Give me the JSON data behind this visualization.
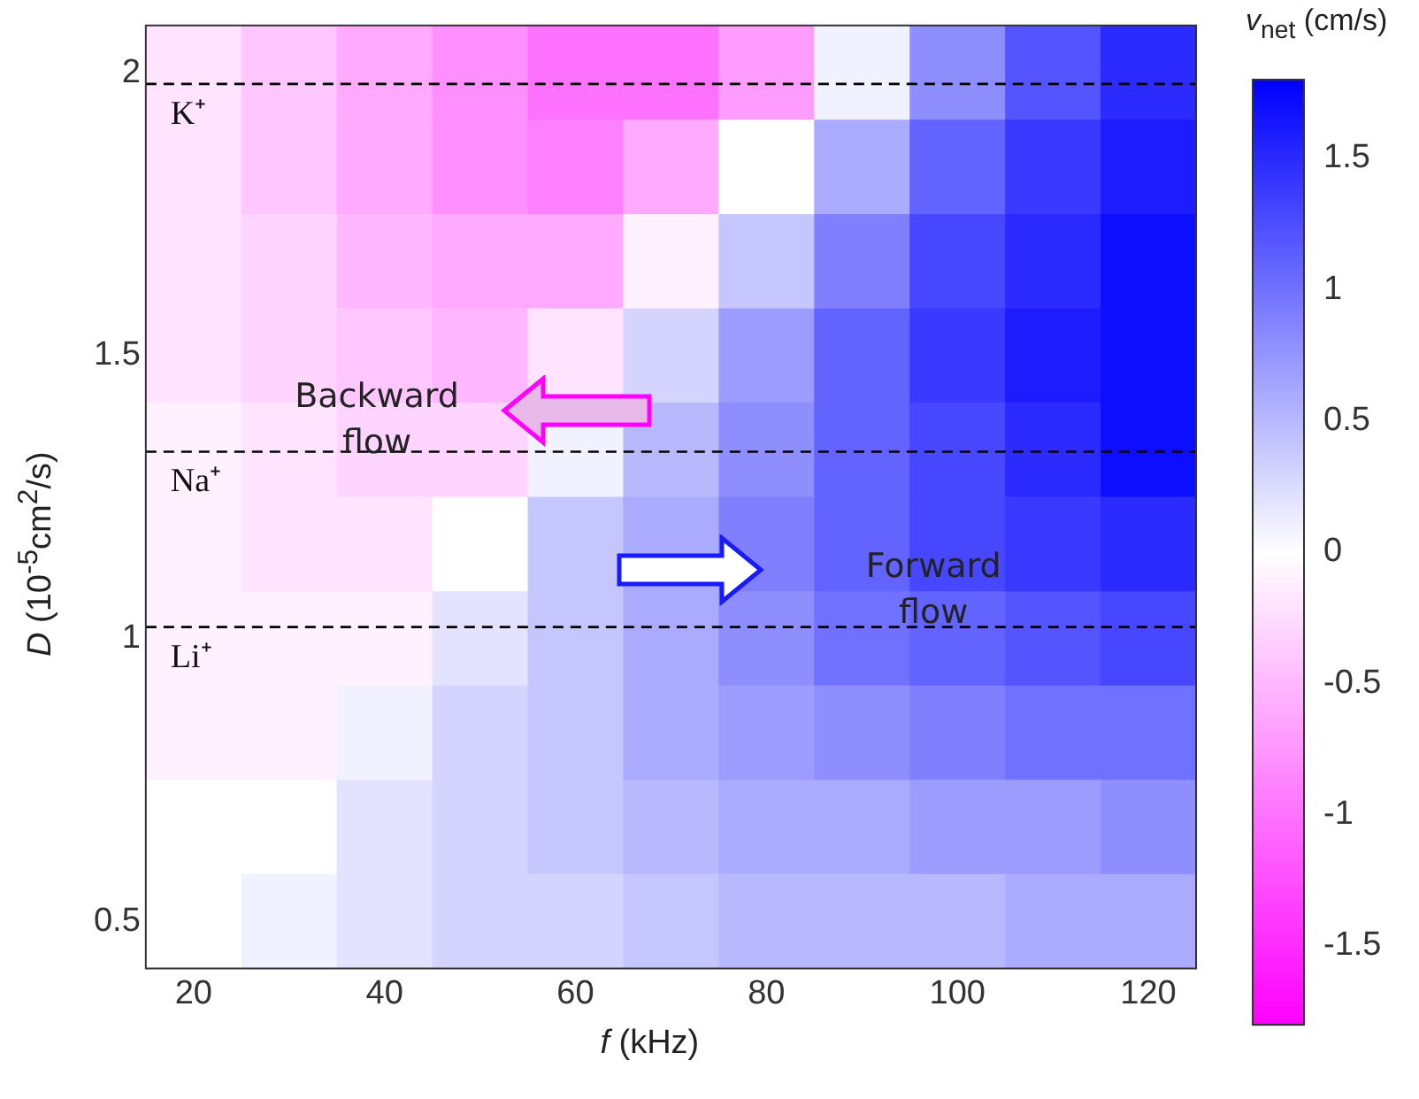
{
  "chart_data": {
    "type": "heatmap",
    "xlabel": "f (kHz)",
    "ylabel": "D (10$^{-5}$cm$^{2}$/s)",
    "clabel": "v$_{net}$ (cm/s)",
    "categories": [
      "20",
      null,
      "40",
      null,
      "60",
      null,
      "80",
      null,
      "100",
      null,
      "120"
    ],
    "y_categories": [
      "2",
      null,
      null,
      "1.5",
      null,
      null,
      "1",
      null,
      null,
      "0.5"
    ],
    "cells": [
      [
        -0.2,
        -0.4,
        -0.6,
        -0.8,
        -1.0,
        -1.0,
        -0.7,
        0.1,
        0.8,
        1.2,
        1.5
      ],
      [
        -0.2,
        -0.4,
        -0.6,
        -0.8,
        -0.9,
        -0.6,
        0.0,
        0.6,
        1.1,
        1.4,
        1.6
      ],
      [
        -0.2,
        -0.3,
        -0.5,
        -0.6,
        -0.6,
        -0.1,
        0.4,
        0.9,
        1.3,
        1.5,
        1.7
      ],
      [
        -0.2,
        -0.3,
        -0.4,
        -0.5,
        -0.2,
        0.3,
        0.7,
        1.1,
        1.4,
        1.6,
        1.7
      ],
      [
        -0.1,
        -0.2,
        -0.3,
        -0.3,
        0.1,
        0.5,
        0.8,
        1.1,
        1.3,
        1.5,
        1.7
      ],
      [
        -0.1,
        -0.2,
        -0.2,
        0.0,
        0.4,
        0.6,
        0.9,
        1.1,
        1.3,
        1.4,
        1.5
      ],
      [
        -0.1,
        -0.1,
        -0.1,
        0.2,
        0.4,
        0.6,
        0.8,
        1.0,
        1.1,
        1.2,
        1.3
      ],
      [
        -0.1,
        -0.1,
        0.1,
        0.3,
        0.4,
        0.6,
        0.7,
        0.8,
        0.9,
        1.0,
        1.0
      ],
      [
        0.0,
        0.0,
        0.2,
        0.3,
        0.4,
        0.5,
        0.6,
        0.6,
        0.7,
        0.7,
        0.8
      ],
      [
        0.0,
        0.1,
        0.2,
        0.3,
        0.3,
        0.4,
        0.5,
        0.5,
        0.5,
        0.6,
        0.6
      ]
    ],
    "clim": [
      -1.8,
      1.8
    ],
    "cticks": [
      -1.5,
      -1,
      -0.5,
      0,
      0.5,
      1,
      1.5
    ],
    "annotations": [
      "K⁺",
      "Na⁺",
      "Li⁺",
      "Backward flow",
      "Forward flow"
    ]
  }
}
